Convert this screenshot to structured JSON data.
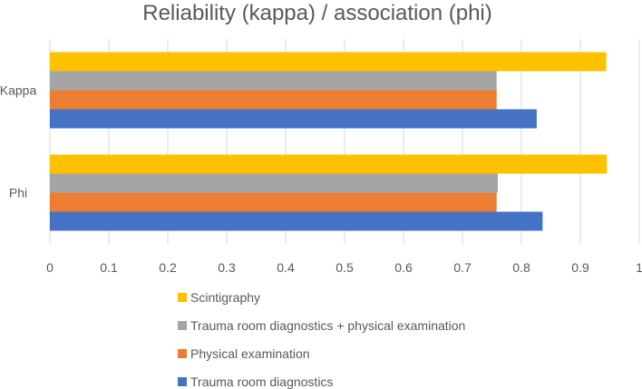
{
  "chart_data": {
    "type": "bar",
    "orientation": "horizontal",
    "title": "Reliability (kappa) / association (phi)",
    "categories": [
      "Kappa",
      "Phi"
    ],
    "series": [
      {
        "name": "Trauma room diagnostics",
        "color": "#4472C4",
        "values": [
          0.826,
          0.836
        ]
      },
      {
        "name": "Physical examination",
        "color": "#ED7D31",
        "values": [
          0.758,
          0.758
        ]
      },
      {
        "name": "Trauma room diagnostics + physical examination",
        "color": "#A5A5A5",
        "values": [
          0.758,
          0.76
        ]
      },
      {
        "name": "Scintigraphy",
        "color": "#FFC000",
        "values": [
          0.944,
          0.945
        ]
      }
    ],
    "xlim": [
      0,
      1
    ],
    "xticks": [
      "0",
      "0.1",
      "0.2",
      "0.3",
      "0.4",
      "0.5",
      "0.6",
      "0.7",
      "0.8",
      "0.9",
      "1"
    ],
    "grid": true,
    "legend_position": "bottom",
    "legend_order": [
      "Scintigraphy",
      "Trauma room diagnostics + physical examination",
      "Physical examination",
      "Trauma room diagnostics"
    ]
  }
}
